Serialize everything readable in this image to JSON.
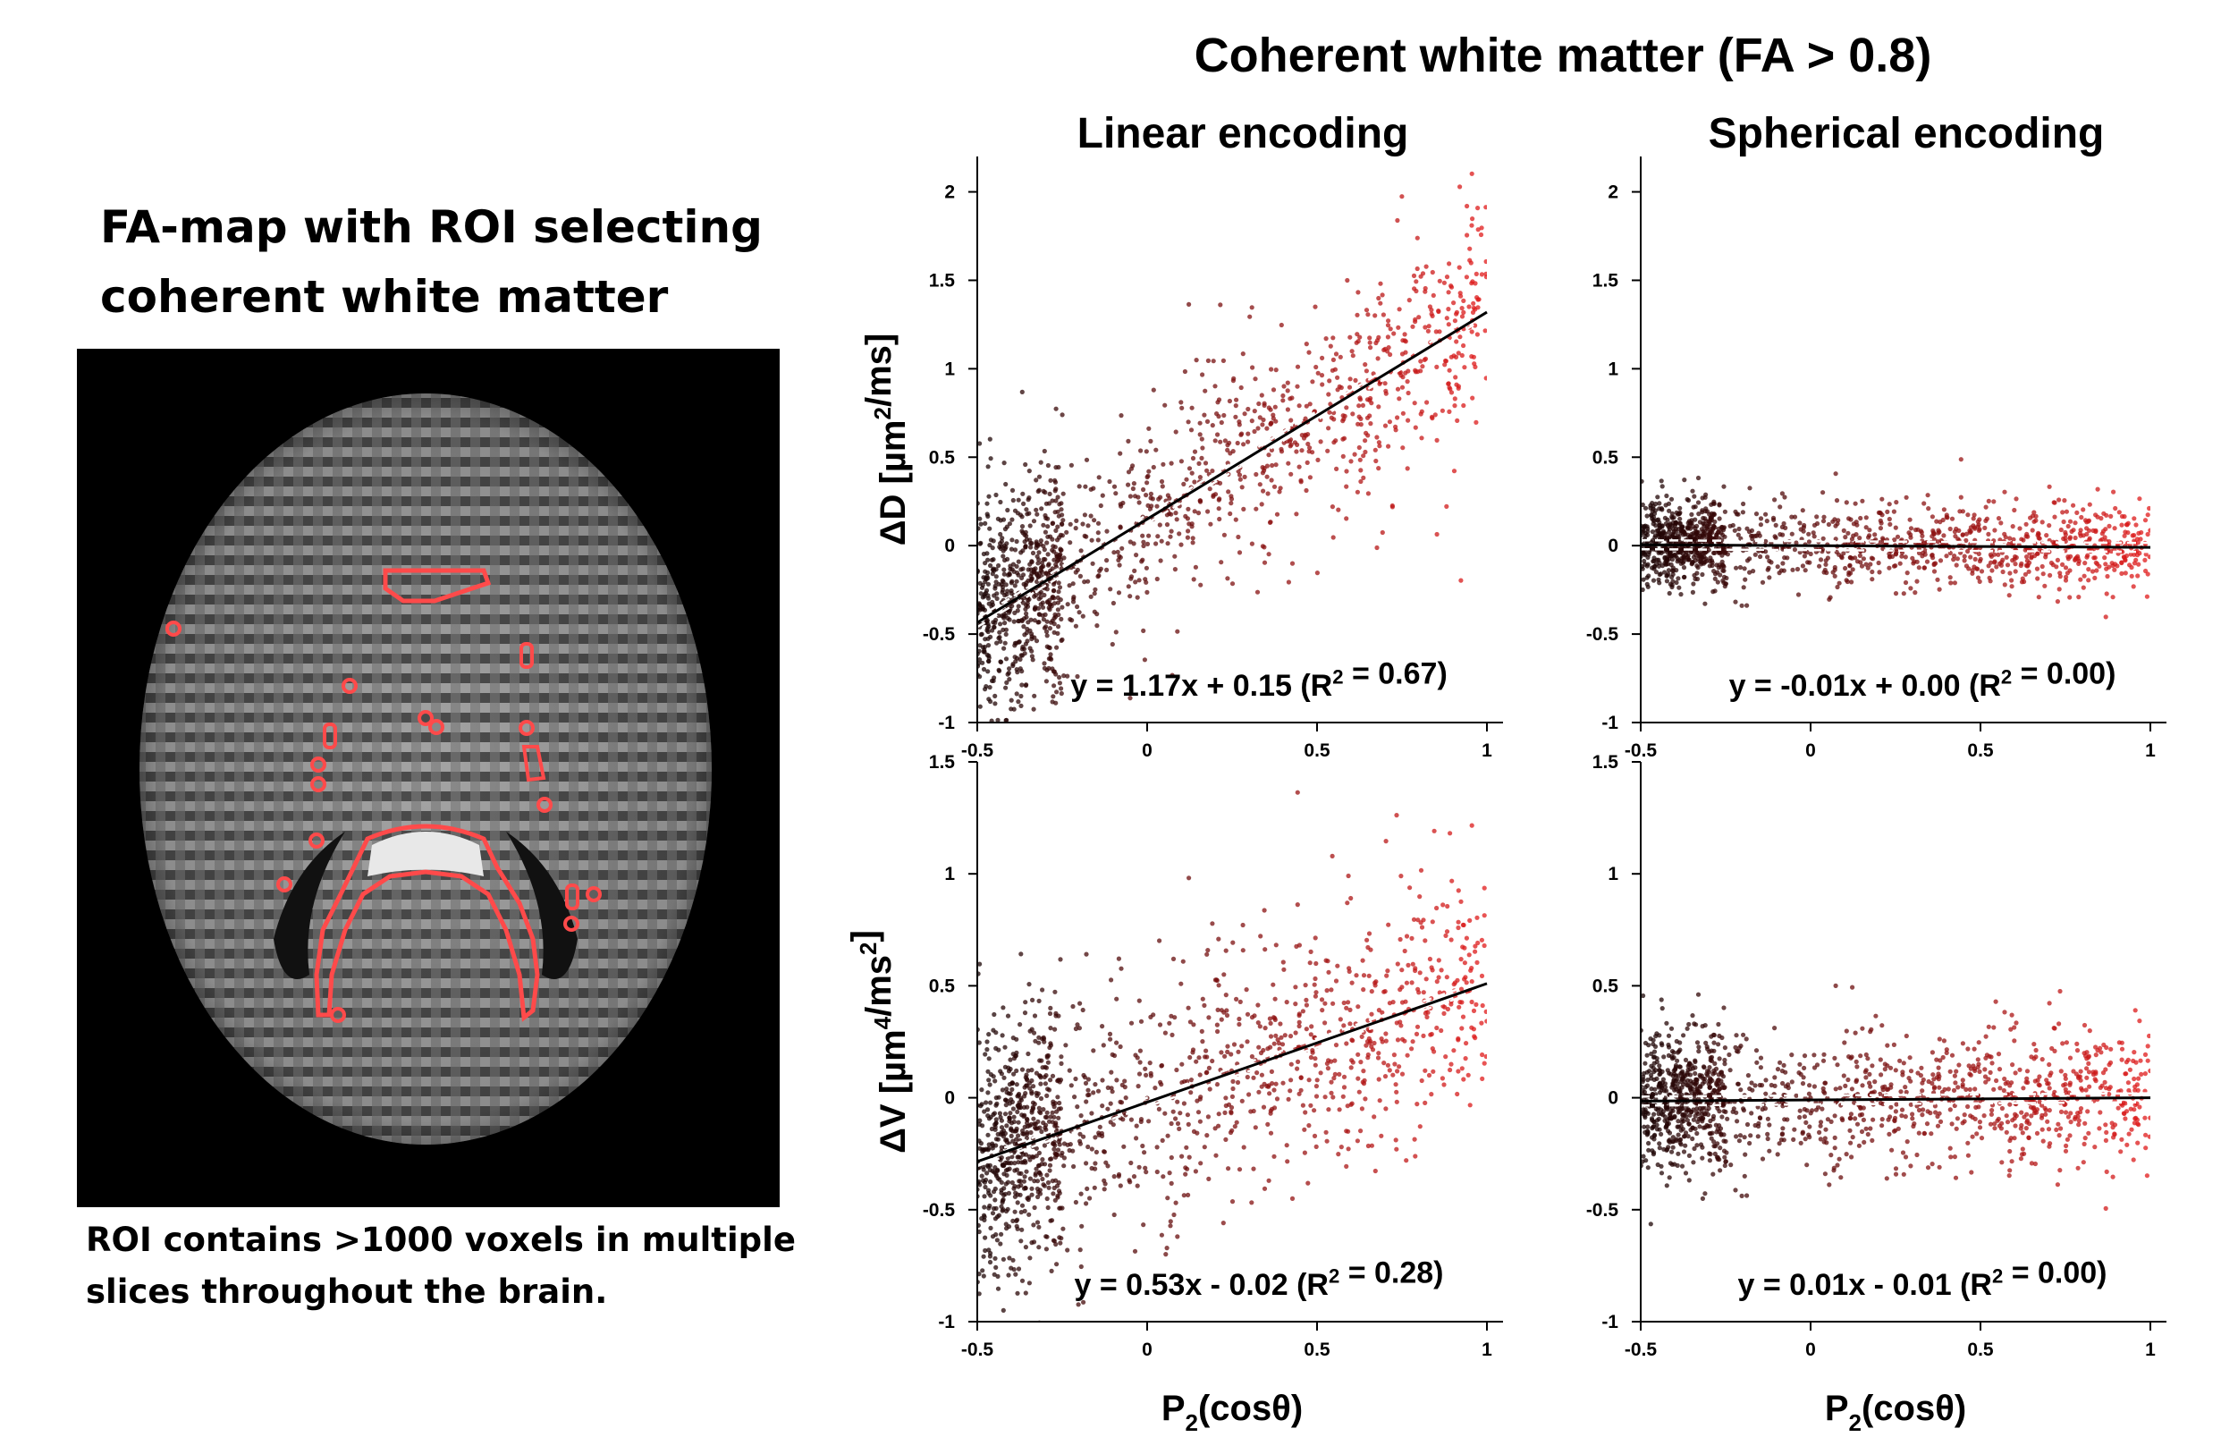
{
  "left_panel": {
    "title_line1": "FA-map with ROI selecting",
    "title_line2": "coherent white matter",
    "caption_line1": "ROI contains >1000 voxels in multiple",
    "caption_line2": "slices throughout the brain."
  },
  "figure": {
    "main_title": "Coherent white matter (FA > 0.8)",
    "column_titles": [
      "Linear encoding",
      "Spherical encoding"
    ],
    "colors": {
      "point_low": "#1a0505",
      "point_high": "#e21b1b",
      "fit_line": "#000000",
      "ci_line": "#ffffff",
      "roi": "#ff4a4a"
    }
  },
  "chart_data": [
    {
      "type": "scatter",
      "panel": "linear-dd",
      "title": "Linear encoding",
      "xlabel": "",
      "ylabel": "ΔD [µm2/ms]",
      "xlim": [
        -0.5,
        1
      ],
      "ylim": [
        -1,
        2.2
      ],
      "xticks": [
        -0.5,
        0,
        0.5,
        1
      ],
      "xtick_labels": [
        "-0.5",
        "0",
        "0.5",
        "1"
      ],
      "yticks": [
        -1,
        -0.5,
        0,
        0.5,
        1,
        1.5,
        2
      ],
      "ytick_labels": [
        "-1",
        "-0.5",
        "0",
        "0.5",
        "1",
        "1.5",
        "2"
      ],
      "fit": {
        "slope": 1.17,
        "intercept": 0.15
      },
      "equation": "y = 1.17x + 0.15  (R2 = 0.67)",
      "noise_sd": 0.32
    },
    {
      "type": "scatter",
      "panel": "spherical-dd",
      "title": "Spherical encoding",
      "xlabel": "",
      "ylabel": "",
      "xlim": [
        -0.5,
        1
      ],
      "ylim": [
        -1,
        2.2
      ],
      "xticks": [
        -0.5,
        0,
        0.5,
        1
      ],
      "xtick_labels": [
        "-0.5",
        "0",
        "0.5",
        "1"
      ],
      "yticks": [
        -1,
        -0.5,
        0,
        0.5,
        1,
        1.5,
        2
      ],
      "ytick_labels": [
        "-1",
        "-0.5",
        "0",
        "0.5",
        "1",
        "1.5",
        "2"
      ],
      "fit": {
        "slope": -0.01,
        "intercept": 0.0
      },
      "equation": "y = -0.01x + 0.00  (R2 = 0.00)",
      "noise_sd": 0.12
    },
    {
      "type": "scatter",
      "panel": "linear-dv",
      "title": "",
      "xlabel": "P2(cosθ)",
      "ylabel": "ΔV [µm4/ms2]",
      "xlim": [
        -0.5,
        1
      ],
      "ylim": [
        -1,
        1.5
      ],
      "xticks": [
        -0.5,
        0,
        0.5,
        1
      ],
      "xtick_labels": [
        "-0.5",
        "0",
        "0.5",
        "1"
      ],
      "yticks": [
        -1,
        -0.5,
        0,
        0.5,
        1,
        1.5
      ],
      "ytick_labels": [
        "-1",
        "-0.5",
        "0",
        "0.5",
        "1",
        "1.5"
      ],
      "fit": {
        "slope": 0.53,
        "intercept": -0.02
      },
      "equation": "y = 0.53x - 0.02  (R2 = 0.28)",
      "noise_sd": 0.28
    },
    {
      "type": "scatter",
      "panel": "spherical-dv",
      "title": "",
      "xlabel": "P2(cosθ)",
      "ylabel": "",
      "xlim": [
        -0.5,
        1
      ],
      "ylim": [
        -1,
        1.5
      ],
      "xticks": [
        -0.5,
        0,
        0.5,
        1
      ],
      "xtick_labels": [
        "-0.5",
        "0",
        "0.5",
        "1"
      ],
      "yticks": [
        -1,
        -0.5,
        0,
        0.5,
        1,
        1.5
      ],
      "ytick_labels": [
        "-1",
        "-0.5",
        "0",
        "0.5",
        "1",
        "1.5"
      ],
      "fit": {
        "slope": 0.01,
        "intercept": -0.01
      },
      "equation": "y = 0.01x - 0.01  (R2 = 0.00)",
      "noise_sd": 0.15
    }
  ]
}
